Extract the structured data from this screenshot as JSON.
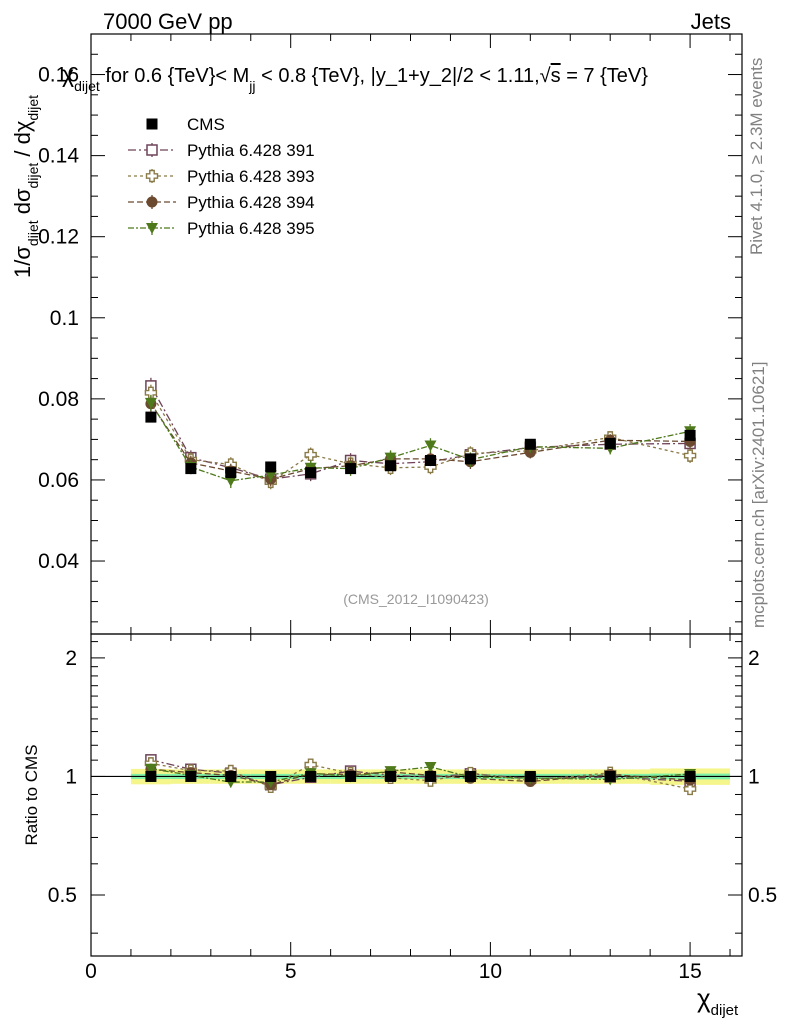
{
  "header": {
    "left": "7000 GeV pp",
    "right": "Jets"
  },
  "side_text": {
    "rivet": "Rivet 4.1.0, ≥ 2.3M events",
    "mcplots": "mcplots.cern.ch [arXiv:2401.10621]"
  },
  "chart_data": {
    "type": "scatter",
    "title": "χdijet for 0.6 {TeV}< Mjj < 0.8 {TeV}, |y_1+y_2|/2 < 1.11,√s = 7 {TeV}",
    "title_parts": {
      "sym": "χ",
      "sub1": "dijet",
      "mid": " for 0.6 {TeV}< M",
      "sub2": "jj",
      "tail": " < 0.8 {TeV}, |y_1+y_2|/2 < 1.11,",
      "sqrt": "√",
      "s": "s",
      "end": " = 7 {TeV}"
    },
    "watermark": "(CMS_2012_I1090423)",
    "xlabel": "χ",
    "xlabel_sub": "dijet",
    "ylabel": "1/σdijet dσdijet / dχdijet",
    "ylabel_parts": {
      "a": "1/σ",
      "a_sub": "dijet",
      "b": " dσ",
      "b_sub": "dijet",
      "c": " / dχ",
      "c_sub": "dijet"
    },
    "ratio_ylabel": "Ratio to CMS",
    "xlim": [
      0,
      16.3
    ],
    "ylim": [
      0.022,
      0.17
    ],
    "ratio_ylim": [
      0.35,
      2.3
    ],
    "xticks": [
      0,
      5,
      10,
      15
    ],
    "xtick_labels": [
      "0",
      "5",
      "10",
      "15"
    ],
    "yticks": [
      0.04,
      0.06,
      0.08,
      0.1,
      0.12,
      0.14,
      0.16
    ],
    "ytick_labels": [
      "0.04",
      "0.06",
      "0.08",
      "0.1",
      "0.12",
      "0.14",
      "0.16"
    ],
    "ratio_yticks": [
      0.5,
      1,
      2
    ],
    "ratio_ytick_labels": [
      "0.5",
      "1",
      "2"
    ],
    "x": [
      1.5,
      2.5,
      3.5,
      4.5,
      5.5,
      6.5,
      7.5,
      8.5,
      9.5,
      11.0,
      13.0,
      15.0
    ],
    "x_bins": [
      [
        1,
        2
      ],
      [
        2,
        3
      ],
      [
        3,
        4
      ],
      [
        4,
        5
      ],
      [
        5,
        6
      ],
      [
        6,
        7
      ],
      [
        7,
        8
      ],
      [
        8,
        9
      ],
      [
        9,
        10
      ],
      [
        10,
        12
      ],
      [
        12,
        14
      ],
      [
        14,
        16
      ]
    ],
    "series": [
      {
        "name": "CMS",
        "color": "#000000",
        "marker": "square-filled",
        "values": [
          0.0755,
          0.0628,
          0.0618,
          0.0632,
          0.0618,
          0.0628,
          0.0635,
          0.0648,
          0.0652,
          0.0688,
          0.069,
          0.071
        ],
        "errors": [
          0.0012,
          0.001,
          0.001,
          0.001,
          0.001,
          0.001,
          0.001,
          0.001,
          0.001,
          0.001,
          0.001,
          0.0012
        ]
      },
      {
        "name": "Pythia 6.428 391",
        "color": "#6e4358",
        "marker": "square-open",
        "dash": "8,3,2,3",
        "values": [
          0.0832,
          0.0655,
          0.063,
          0.0602,
          0.0615,
          0.0648,
          0.064,
          0.0645,
          0.0662,
          0.068,
          0.0688,
          0.069
        ],
        "errors": [
          0.002,
          0.0018,
          0.0018,
          0.0018,
          0.0018,
          0.0018,
          0.0018,
          0.0018,
          0.0018,
          0.0015,
          0.0015,
          0.0018
        ]
      },
      {
        "name": "Pythia 6.428 393",
        "color": "#8a7a48",
        "marker": "cross-open",
        "dash": "3,3",
        "values": [
          0.0815,
          0.065,
          0.0638,
          0.0595,
          0.0662,
          0.064,
          0.063,
          0.0632,
          0.0665,
          0.0672,
          0.0705,
          0.066
        ],
        "errors": [
          0.002,
          0.0018,
          0.0018,
          0.0018,
          0.0018,
          0.0018,
          0.0018,
          0.0018,
          0.0018,
          0.0015,
          0.0015,
          0.0018
        ]
      },
      {
        "name": "Pythia 6.428 394",
        "color": "#6b4a30",
        "marker": "circle-filled",
        "dash": "6,3",
        "values": [
          0.0788,
          0.0642,
          0.0622,
          0.0602,
          0.0628,
          0.0635,
          0.0652,
          0.0652,
          0.0645,
          0.0668,
          0.0698,
          0.0695
        ],
        "errors": [
          0.002,
          0.0018,
          0.0018,
          0.0018,
          0.0018,
          0.0018,
          0.0018,
          0.0018,
          0.0018,
          0.0015,
          0.0015,
          0.0018
        ]
      },
      {
        "name": "Pythia 6.428 395",
        "color": "#4e7a1c",
        "marker": "triangle-down-filled",
        "dash": "6,2,2,2",
        "values": [
          0.079,
          0.0632,
          0.0598,
          0.0612,
          0.063,
          0.0628,
          0.0655,
          0.0685,
          0.065,
          0.0682,
          0.0678,
          0.072
        ],
        "errors": [
          0.002,
          0.0018,
          0.0018,
          0.0018,
          0.0018,
          0.0018,
          0.0018,
          0.0018,
          0.0018,
          0.0015,
          0.0015,
          0.0018
        ]
      }
    ],
    "ratio_band": {
      "inner_color": "#7ff0a8",
      "outer_color": "#f4f58a",
      "inner": [
        0.015,
        0.015,
        0.015,
        0.015,
        0.015,
        0.015,
        0.015,
        0.015,
        0.015,
        0.015,
        0.015,
        0.017
      ],
      "outer": [
        0.045,
        0.042,
        0.042,
        0.042,
        0.042,
        0.042,
        0.042,
        0.042,
        0.042,
        0.042,
        0.042,
        0.048
      ]
    }
  }
}
